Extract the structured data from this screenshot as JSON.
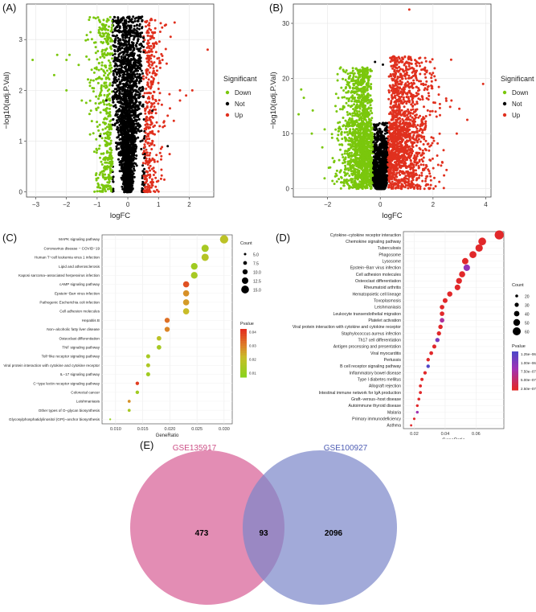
{
  "panel_labels": {
    "a": "(A)",
    "b": "(B)",
    "c": "(C)",
    "d": "(D)",
    "e": "(E)"
  },
  "colors": {
    "down": "#7ac70c",
    "not": "#000000",
    "up": "#e0301e",
    "venn_left": "#d9679b",
    "venn_right": "#7a86c9",
    "venn_left_label": "#cc4f86",
    "venn_right_label": "#4d5cb3"
  },
  "chart_data": [
    {
      "id": "A",
      "type": "scatter",
      "xlabel": "logFC",
      "ylabel": "−log10(adj.P.Val)",
      "xlim": [
        -3.3,
        2.8
      ],
      "ylim": [
        -0.1,
        3.7
      ],
      "xticks": [
        -3,
        -2,
        -1,
        0,
        1,
        2
      ],
      "yticks": [
        0,
        1,
        2,
        3
      ],
      "legend_title": "Significant",
      "legend": [
        "Down",
        "Not",
        "Up"
      ],
      "legend_position": "right",
      "grid": true,
      "outliers": {
        "down": [
          [
            -3.1,
            2.6
          ],
          [
            -2.4,
            2.3
          ],
          [
            -2.3,
            2.7
          ],
          [
            -2.0,
            2.6
          ],
          [
            -1.9,
            2.7
          ],
          [
            -1.6,
            2.5
          ],
          [
            -1.2,
            2.2
          ],
          [
            -1.5,
            1.8
          ],
          [
            -2.0,
            2.0
          ],
          [
            -1.3,
            3.0
          ]
        ],
        "up": [
          [
            2.6,
            2.8
          ],
          [
            1.7,
            2.0
          ],
          [
            1.7,
            1.8
          ],
          [
            1.5,
            1.4
          ],
          [
            1.9,
            1.9
          ],
          [
            2.1,
            2.0
          ],
          [
            1.3,
            1.5
          ],
          [
            1.2,
            1.3
          ]
        ],
        "not": [
          [
            1.3,
            0.9
          ],
          [
            -0.9,
            1.1
          ],
          [
            0.8,
            1.6
          ],
          [
            -0.7,
            1.8
          ]
        ]
      }
    },
    {
      "id": "B",
      "type": "scatter",
      "xlabel": "logFC",
      "ylabel": "−log10(adj.P.Val)",
      "xlim": [
        -3.3,
        4.2
      ],
      "ylim": [
        -1.5,
        33.5
      ],
      "xticks": [
        -2,
        0,
        2,
        4
      ],
      "yticks": [
        0,
        10,
        20,
        30
      ],
      "legend_title": "Significant",
      "legend": [
        "Down",
        "Not",
        "Up"
      ],
      "legend_position": "right",
      "grid": true,
      "outliers": {
        "down": [
          [
            -3.0,
            18.0
          ],
          [
            -2.9,
            16.5
          ],
          [
            -3.1,
            13.5
          ],
          [
            -2.6,
            10.0
          ],
          [
            -2.2,
            7.5
          ],
          [
            -1.7,
            15.0
          ],
          [
            -1.5,
            22.0
          ],
          [
            -1.2,
            12.0
          ]
        ],
        "up": [
          [
            1.1,
            32.5
          ],
          [
            3.9,
            19.0
          ],
          [
            2.9,
            10.0
          ],
          [
            2.4,
            7.0
          ],
          [
            3.3,
            12.5
          ],
          [
            3.0,
            14.5
          ],
          [
            2.0,
            21.0
          ],
          [
            2.7,
            16.0
          ]
        ],
        "not": [
          [
            -0.2,
            23.0
          ],
          [
            0.1,
            22.5
          ]
        ]
      }
    },
    {
      "id": "C",
      "type": "scatter",
      "subtype": "dotplot",
      "xlabel": "GeneRatio",
      "xlim": [
        0.0075,
        0.0315
      ],
      "xticks": [
        0.01,
        0.015,
        0.02,
        0.025,
        0.03
      ],
      "x_tick_labels": [
        "0.010",
        "0.015",
        "0.020",
        "0.025",
        "0.030"
      ],
      "size_legend_title": "Count",
      "size_legend": [
        5.0,
        7.5,
        10.0,
        12.5,
        15.0
      ],
      "size_legend_labels": [
        "5.0",
        "7.5",
        "10.0",
        "12.5",
        "15.0"
      ],
      "color_legend_title": "Pvalue",
      "color_legend_ticks": [
        0.04,
        0.03,
        0.02,
        0.01
      ],
      "color_legend_labels": [
        "0.04",
        "0.03",
        "0.02",
        "0.01"
      ],
      "terms": [
        {
          "label": "MAPK signaling pathway",
          "x": 0.03,
          "count": 16,
          "p": 0.018
        },
        {
          "label": "Coronavirus disease − COVID−19",
          "x": 0.0265,
          "count": 14,
          "p": 0.012
        },
        {
          "label": "Human T−cell leukemia virus 1 infection",
          "x": 0.0265,
          "count": 14,
          "p": 0.016
        },
        {
          "label": "Lipid and atherosclerosis",
          "x": 0.0245,
          "count": 13,
          "p": 0.01
        },
        {
          "label": "Kaposi sarcoma−associated herpesvirus infection",
          "x": 0.0245,
          "count": 13,
          "p": 0.012
        },
        {
          "label": "cAMP signaling pathway",
          "x": 0.023,
          "count": 12,
          "p": 0.042
        },
        {
          "label": "Epstein−Barr virus infection",
          "x": 0.023,
          "count": 12,
          "p": 0.03
        },
        {
          "label": "Pathogenic Escherichia coli infection",
          "x": 0.023,
          "count": 12,
          "p": 0.028
        },
        {
          "label": "Cell adhesion molecules",
          "x": 0.023,
          "count": 12,
          "p": 0.022
        },
        {
          "label": "Hepatitis B",
          "x": 0.0195,
          "count": 10,
          "p": 0.036
        },
        {
          "label": "Non−alcoholic fatty liver disease",
          "x": 0.0195,
          "count": 10,
          "p": 0.032
        },
        {
          "label": "Osteoclast differentiation",
          "x": 0.018,
          "count": 9,
          "p": 0.018
        },
        {
          "label": "TNF signaling pathway",
          "x": 0.018,
          "count": 9,
          "p": 0.012
        },
        {
          "label": "Toll−like receptor signaling pathway",
          "x": 0.016,
          "count": 8,
          "p": 0.012
        },
        {
          "label": "Viral protein interaction with cytokine and cytokine receptor",
          "x": 0.016,
          "count": 8,
          "p": 0.014
        },
        {
          "label": "IL−17 signaling pathway",
          "x": 0.016,
          "count": 8,
          "p": 0.01
        },
        {
          "label": "C−type lectin receptor signaling pathway",
          "x": 0.014,
          "count": 7,
          "p": 0.046
        },
        {
          "label": "Colorectal cancer",
          "x": 0.014,
          "count": 7,
          "p": 0.01
        },
        {
          "label": "Leishmaniasis",
          "x": 0.0125,
          "count": 6,
          "p": 0.03
        },
        {
          "label": "Other types of O−glycan biosynthesis",
          "x": 0.0125,
          "count": 6,
          "p": 0.012
        },
        {
          "label": "Glycosylphosphatidylinositol (GPI)−anchor biosynthesis",
          "x": 0.009,
          "count": 4,
          "p": 0.006
        }
      ]
    },
    {
      "id": "D",
      "type": "scatter",
      "subtype": "dotplot",
      "xlabel": "GeneRatio",
      "xlim": [
        0.013,
        0.078
      ],
      "xticks": [
        0.02,
        0.04,
        0.06
      ],
      "x_tick_labels": [
        "0.02",
        "0.04",
        "0.06"
      ],
      "size_legend_title": "Count",
      "size_legend": [
        20,
        30,
        40,
        50,
        60
      ],
      "size_legend_labels": [
        "20",
        "30",
        "40",
        "50",
        "60"
      ],
      "color_legend_title": "Pvalue",
      "color_legend_ticks": [
        1.25e-06,
        1e-06,
        7.5e-07,
        5e-07,
        2.5e-07
      ],
      "color_legend_labels": [
        "1.25e−06",
        "1.00e−06",
        "7.50e−07",
        "5.00e−07",
        "2.50e−07"
      ],
      "terms": [
        {
          "label": "Cytokine−cytokine receptor interaction",
          "x": 0.075,
          "count": 68,
          "p": 1e-08
        },
        {
          "label": "Chemokine signaling pathway",
          "x": 0.064,
          "count": 58,
          "p": 1e-08
        },
        {
          "label": "Tuberculosis",
          "x": 0.062,
          "count": 55,
          "p": 1e-08
        },
        {
          "label": "Phagosome",
          "x": 0.058,
          "count": 52,
          "p": 1e-08
        },
        {
          "label": "Lysosome",
          "x": 0.053,
          "count": 47,
          "p": 1e-08
        },
        {
          "label": "Epstein−Barr virus infection",
          "x": 0.054,
          "count": 48,
          "p": 8e-07
        },
        {
          "label": "Cell adhesion molecules",
          "x": 0.051,
          "count": 45,
          "p": 1e-08
        },
        {
          "label": "Osteoclast differentiation",
          "x": 0.049,
          "count": 43,
          "p": 1e-08
        },
        {
          "label": "Rheumatoid arthritis",
          "x": 0.048,
          "count": 42,
          "p": 1e-08
        },
        {
          "label": "Hematopoietic cell lineage",
          "x": 0.043,
          "count": 38,
          "p": 1e-08
        },
        {
          "label": "Toxoplasmosis",
          "x": 0.04,
          "count": 35,
          "p": 1e-08
        },
        {
          "label": "Leishmaniasis",
          "x": 0.038,
          "count": 33,
          "p": 1e-08
        },
        {
          "label": "Leukocyte transendothelial migration",
          "x": 0.038,
          "count": 33,
          "p": 1e-08
        },
        {
          "label": "Platelet activation",
          "x": 0.038,
          "count": 33,
          "p": 6e-07
        },
        {
          "label": "Viral protein interaction with cytokine and cytokine receptor",
          "x": 0.037,
          "count": 32,
          "p": 1e-08
        },
        {
          "label": "Staphylococcus aureus infection",
          "x": 0.036,
          "count": 31,
          "p": 1e-08
        },
        {
          "label": "Th17 cell differentiation",
          "x": 0.035,
          "count": 31,
          "p": 1e-06
        },
        {
          "label": "Antigen processing and presentation",
          "x": 0.033,
          "count": 29,
          "p": 1e-08
        },
        {
          "label": "Viral myocarditis",
          "x": 0.031,
          "count": 27,
          "p": 1e-08
        },
        {
          "label": "Pertussis",
          "x": 0.029,
          "count": 25,
          "p": 1e-08
        },
        {
          "label": "B cell receptor signaling pathway",
          "x": 0.029,
          "count": 25,
          "p": 1.3e-06
        },
        {
          "label": "Inflammatory bowel disease",
          "x": 0.027,
          "count": 24,
          "p": 1e-08
        },
        {
          "label": "Type I diabetes mellitus",
          "x": 0.025,
          "count": 22,
          "p": 1e-08
        },
        {
          "label": "Allograft rejection",
          "x": 0.024,
          "count": 21,
          "p": 1e-08
        },
        {
          "label": "Intestinal immune network for IgA production",
          "x": 0.024,
          "count": 21,
          "p": 1e-08
        },
        {
          "label": "Graft−versus−host disease",
          "x": 0.023,
          "count": 20,
          "p": 1e-08
        },
        {
          "label": "Autoimmune thyroid disease",
          "x": 0.022,
          "count": 19,
          "p": 1e-08
        },
        {
          "label": "Malaria",
          "x": 0.022,
          "count": 19,
          "p": 7e-07
        },
        {
          "label": "Primary immunodeficiency",
          "x": 0.02,
          "count": 17,
          "p": 1e-08
        },
        {
          "label": "Asthma",
          "x": 0.018,
          "count": 15,
          "p": 1e-08
        }
      ]
    }
  ],
  "venn": {
    "left_label": "GSE135917",
    "right_label": "GSE100927",
    "left_only": "473",
    "overlap": "93",
    "right_only": "2096"
  }
}
